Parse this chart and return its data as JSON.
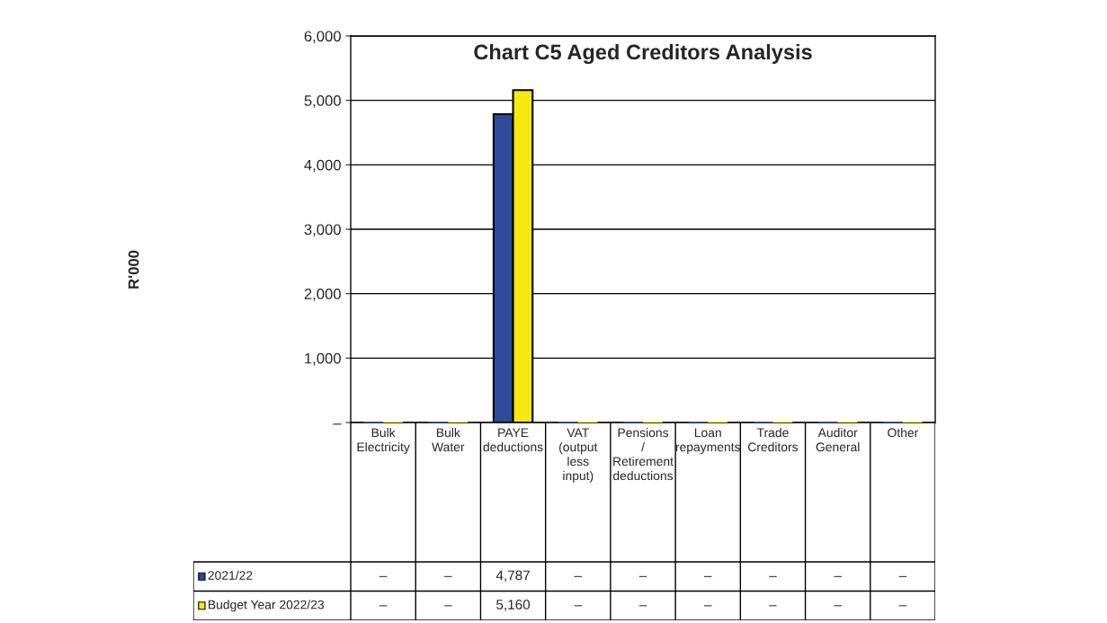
{
  "chart_data": {
    "type": "bar",
    "title": "Chart C5 Aged Creditors Analysis",
    "categories": [
      "Bulk Electricity",
      "Bulk Water",
      "PAYE deductions",
      "VAT (output less input)",
      "Pensions / Retirement deductions",
      "Loan repayments",
      "Trade Creditors",
      "Auditor General",
      "Other"
    ],
    "series": [
      {
        "name": "2021/22",
        "color": "#2e4b9b",
        "values": [
          0,
          0,
          4787,
          0,
          0,
          0,
          0,
          0,
          0
        ],
        "value_labels": [
          "–",
          "–",
          "4,787",
          "–",
          "–",
          "–",
          "–",
          "–",
          "–"
        ]
      },
      {
        "name": "Budget Year 2022/23",
        "color": "#f5e90f",
        "values": [
          0,
          0,
          5160,
          0,
          0,
          0,
          0,
          0,
          0
        ],
        "value_labels": [
          "–",
          "–",
          "5,160",
          "–",
          "–",
          "–",
          "–",
          "–",
          "–"
        ]
      }
    ],
    "ylim": [
      0,
      6000
    ],
    "yticks": [
      {
        "value": 0,
        "label": "–"
      },
      {
        "value": 1000,
        "label": "1,000"
      },
      {
        "value": 2000,
        "label": "2,000"
      },
      {
        "value": 3000,
        "label": "3,000"
      },
      {
        "value": 4000,
        "label": "4,000"
      },
      {
        "value": 5000,
        "label": "5,000"
      },
      {
        "value": 6000,
        "label": "6,000"
      }
    ],
    "annotations": [
      "R'000"
    ],
    "grid": "y",
    "legend": "bottom"
  }
}
